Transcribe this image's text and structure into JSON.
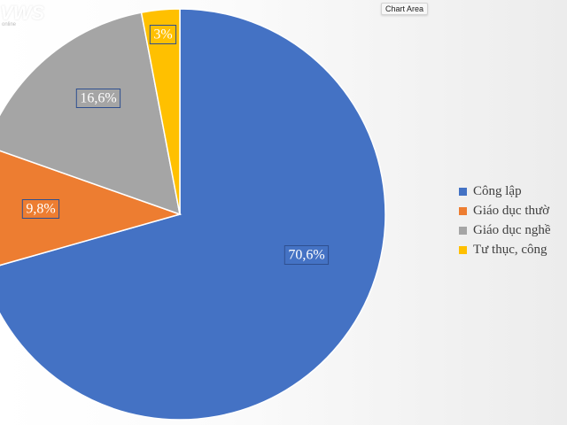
{
  "watermark": {
    "logo": "VWS",
    "sub": "online"
  },
  "tooltip": {
    "label": "Chart Area"
  },
  "chart_data": {
    "type": "pie",
    "categories": [
      "Công lập",
      "Giáo dục thườ",
      "Giáo dục nghề",
      "Tư thục, công"
    ],
    "values": [
      70.6,
      9.8,
      16.6,
      3.0
    ],
    "data_labels": [
      "70,6%",
      "9,8%",
      "16,6%",
      "3%"
    ],
    "colors": [
      "#4472C4",
      "#ED7D31",
      "#A5A5A5",
      "#FFC000"
    ],
    "start_angle_deg": 0,
    "direction": "clockwise",
    "legend_position": "right"
  }
}
